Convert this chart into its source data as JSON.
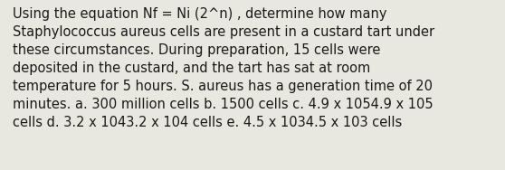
{
  "text": "Using the equation Nf = Ni (2^n) , determine how many\nStaphylococcus aureus cells are present in a custard tart under\nthese circumstances. During preparation, 15 cells were\ndeposited in the custard, and the tart has sat at room\ntemperature for 5 hours. S. aureus has a generation time of 20\nminutes. a. 300 million cells b. 1500 cells c. 4.9 x 1054.9 x 105\ncells d. 3.2 x 1043.2 x 104 cells e. 4.5 x 1034.5 x 103 cells",
  "background_color": "#e8e8e0",
  "text_color": "#1a1a1a",
  "font_size": 10.5,
  "fig_width": 5.58,
  "fig_height": 1.88,
  "dpi": 100
}
